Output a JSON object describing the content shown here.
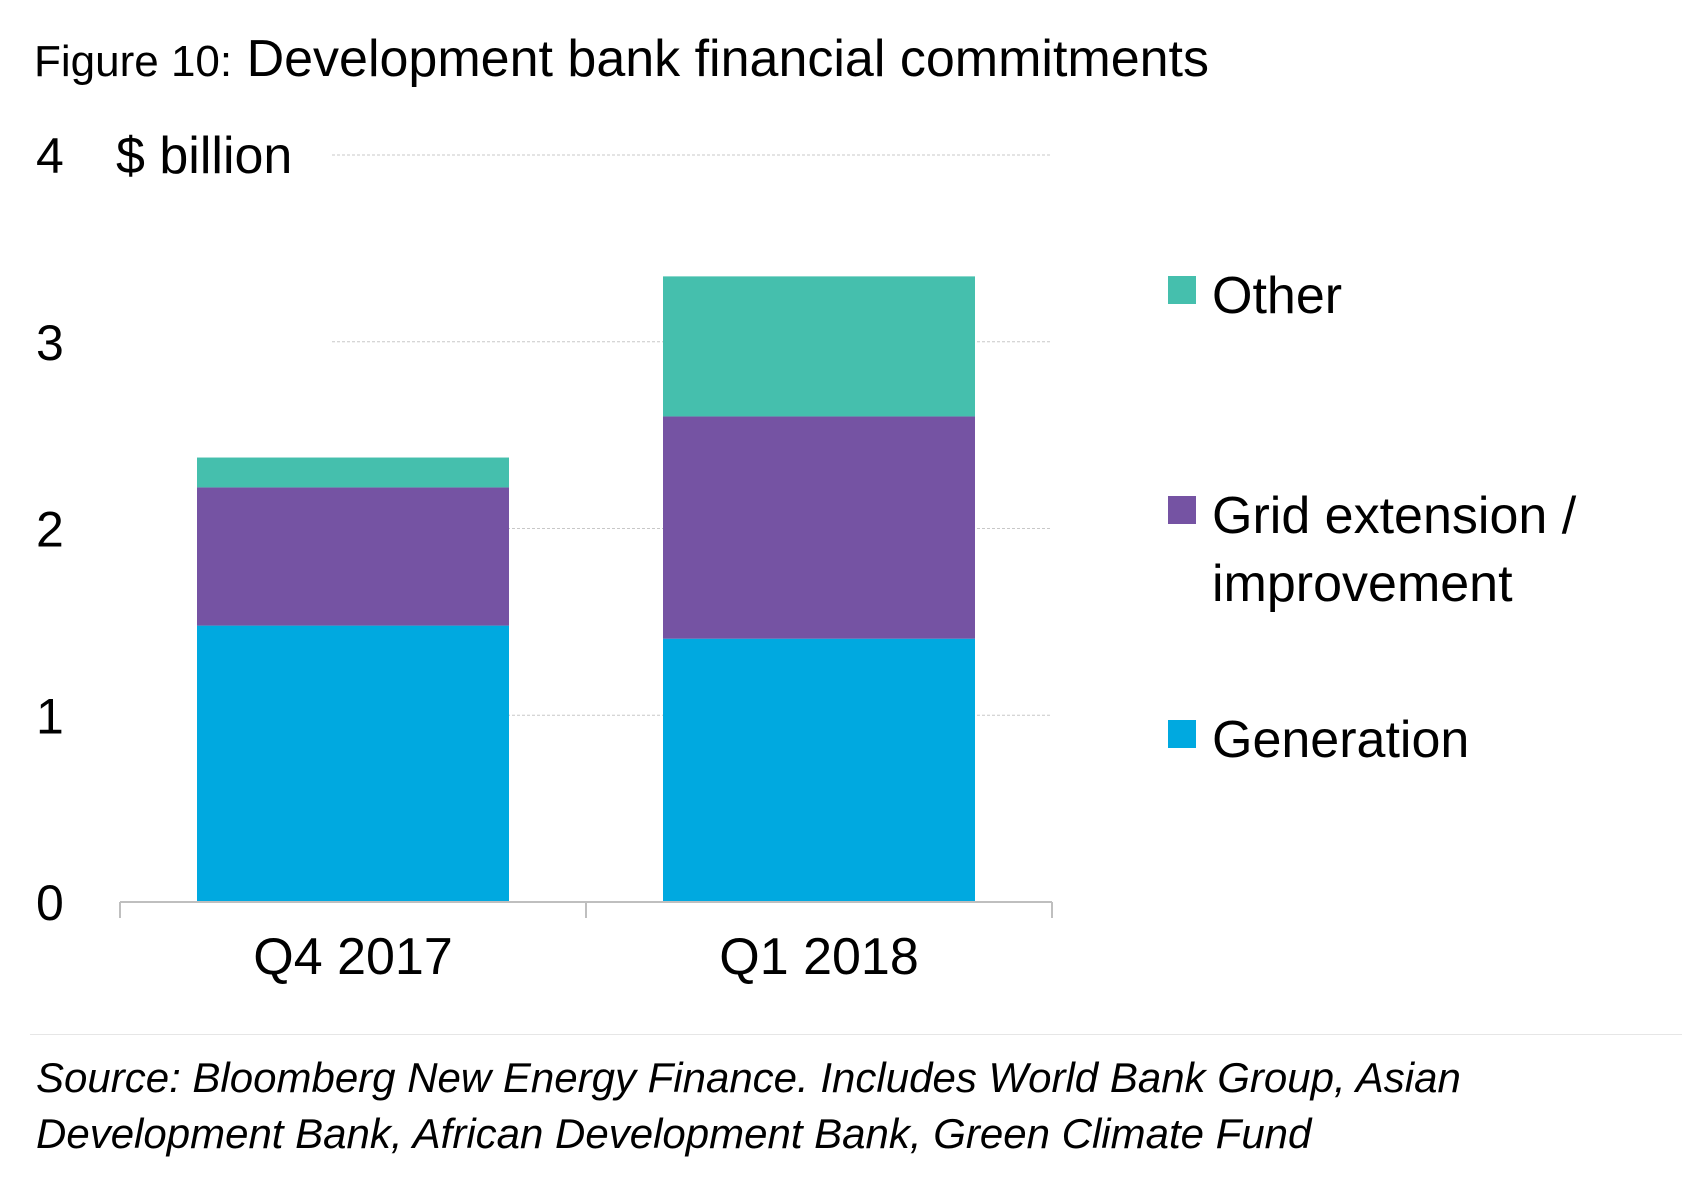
{
  "figure_label": "Figure 10:",
  "title": "Development bank financial commitments",
  "source": "Source: Bloomberg New Energy Finance. Includes World Bank Group, Asian Development Bank, African Development Bank, Green Climate Fund",
  "chart_data": {
    "type": "bar",
    "stacked": true,
    "title": "Development bank financial commitments",
    "ylabel": "$ billion",
    "xlabel": "",
    "ylim": [
      0,
      4
    ],
    "yticks": [
      0,
      1,
      2,
      3,
      4
    ],
    "grid": true,
    "legend_position": "right",
    "categories": [
      "Q4 2017",
      "Q1 2018"
    ],
    "series": [
      {
        "name": "Generation",
        "values": [
          1.48,
          1.41
        ],
        "color": "#00a9e0"
      },
      {
        "name": "Grid extension / improvement",
        "values": [
          0.74,
          1.19
        ],
        "color": "#7553a3"
      },
      {
        "name": "Other",
        "values": [
          0.16,
          0.75
        ],
        "color": "#45bfad"
      }
    ]
  }
}
